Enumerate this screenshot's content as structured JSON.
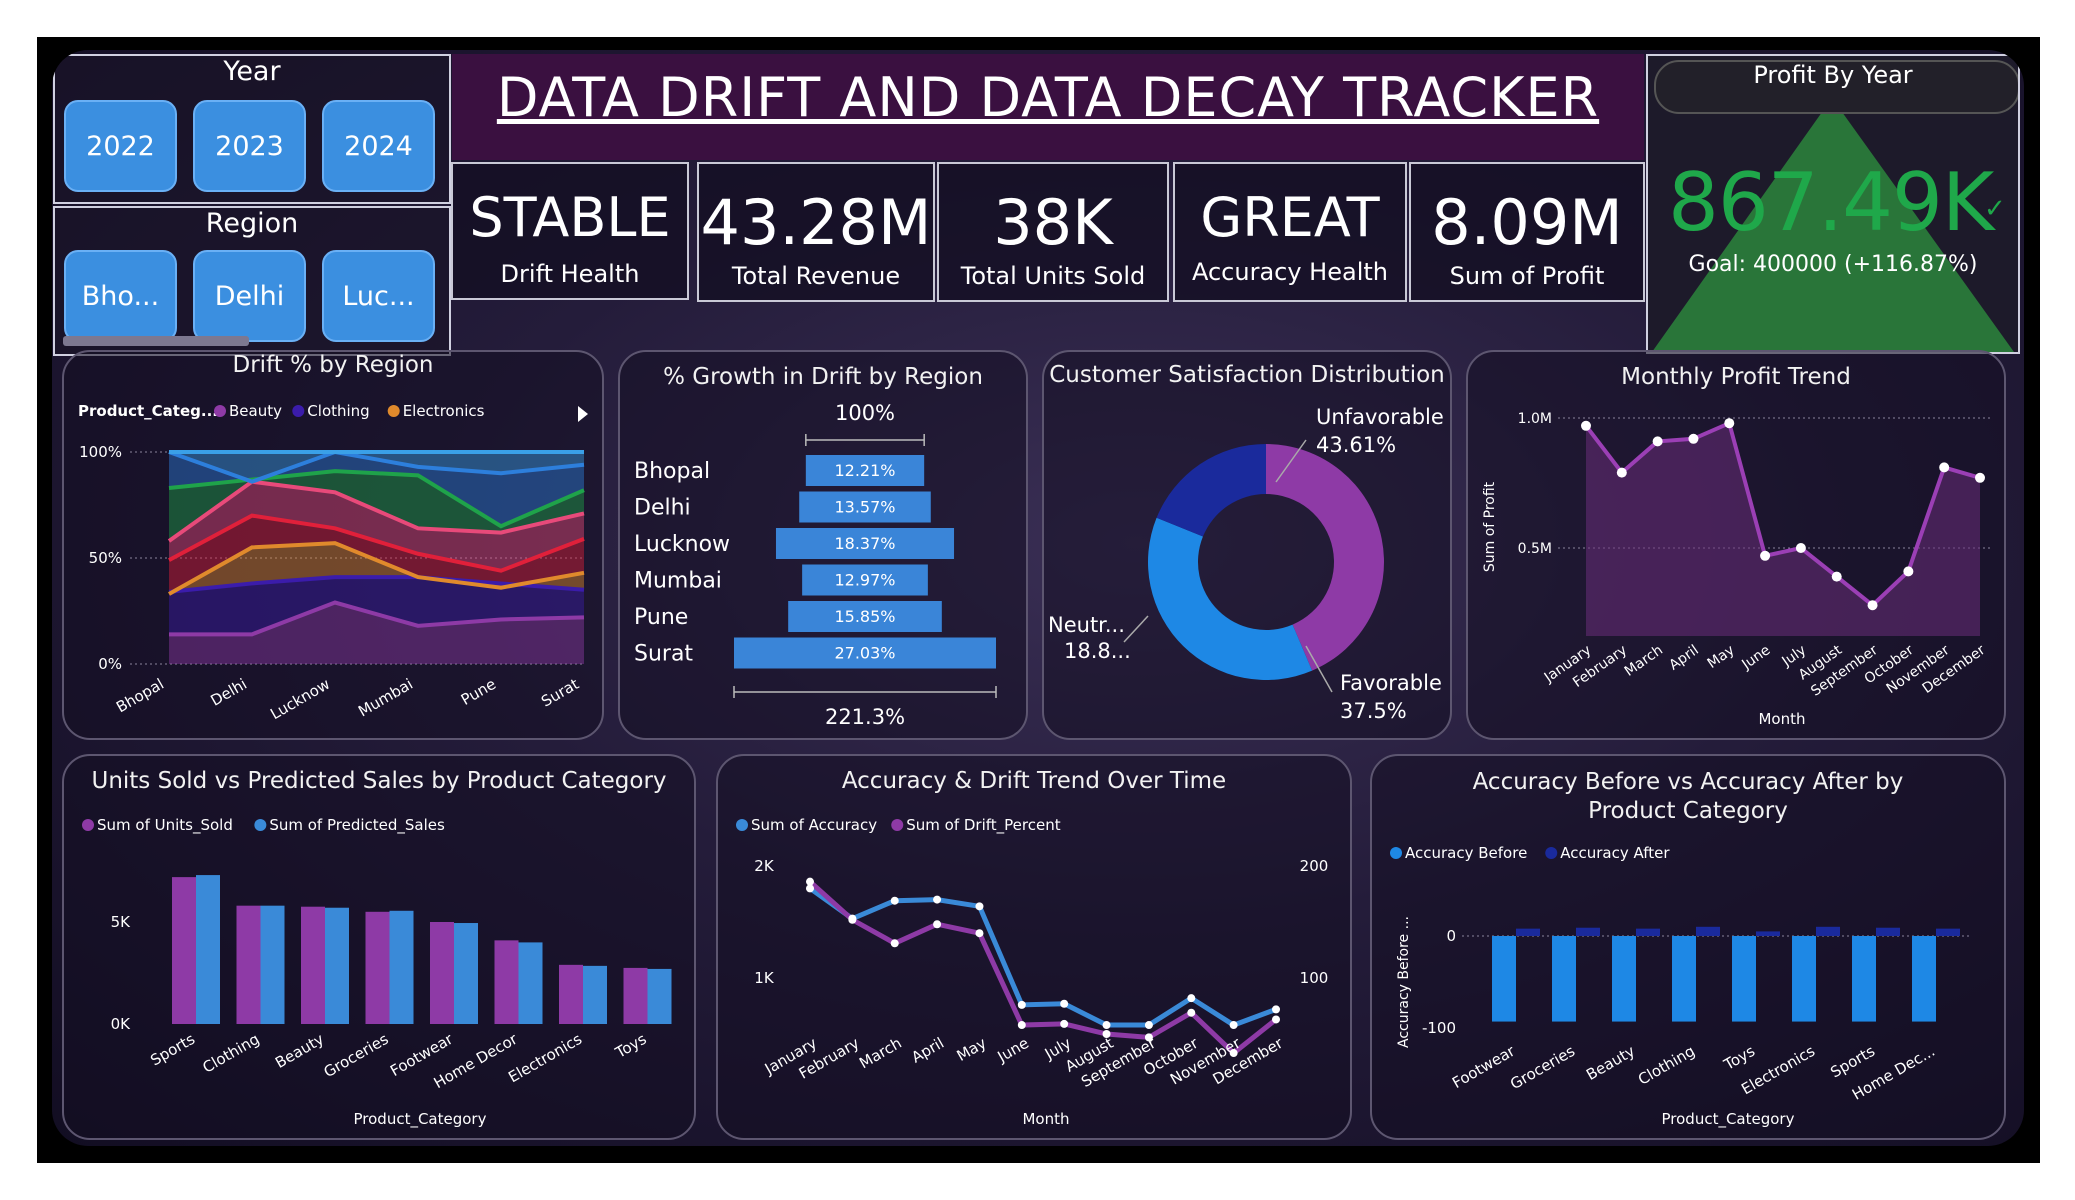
{
  "title": "DATA DRIFT AND DATA DECAY TRACKER",
  "year_slicer": {
    "label": "Year",
    "options": [
      "2022",
      "2023",
      "2024"
    ]
  },
  "region_slicer": {
    "label": "Region",
    "options": [
      "Bho...",
      "Delhi",
      "Luc..."
    ]
  },
  "kpis": [
    {
      "value": "STABLE",
      "label": "Drift Health"
    },
    {
      "value": "43.28M",
      "label": "Total Revenue"
    },
    {
      "value": "38K",
      "label": "Total Units Sold"
    },
    {
      "value": "GREAT",
      "label": "Accuracy Health"
    },
    {
      "value": "8.09M",
      "label": "Sum of Profit"
    }
  ],
  "profit_by_year": {
    "title": "Profit By Year",
    "value": "867.49K",
    "check": "✓",
    "goal": "Goal: 400000 (+116.87%)"
  },
  "colors": {
    "accent_blue": "#1e88e5",
    "purple": "#8e3aa6",
    "navy": "#1a2a9c",
    "green": "#1b9e3a"
  },
  "drift_by_region": {
    "title": "Drift % by Region",
    "legend_title": "Product_Categ...",
    "legend": [
      {
        "name": "Beauty",
        "color": "#8e3aa6"
      },
      {
        "name": "Clothing",
        "color": "#3b1cab"
      },
      {
        "name": "Electronics",
        "color": "#e08a2c"
      }
    ],
    "y_ticks": [
      "100%",
      "50%",
      "0%"
    ],
    "categories": [
      "Bhopal",
      "Delhi",
      "Lucknow",
      "Mumbai",
      "Pune",
      "Surat"
    ],
    "stack_tops": [
      {
        "color": "#8e3aa6",
        "values": [
          14,
          14,
          29,
          18,
          21,
          22
        ]
      },
      {
        "color": "#3b1cab",
        "values": [
          34,
          38,
          41,
          41,
          38,
          35
        ]
      },
      {
        "color": "#e08a2c",
        "values": [
          33,
          55,
          57,
          41,
          36,
          43
        ]
      },
      {
        "color": "#e0203a",
        "values": [
          49,
          70,
          64,
          52,
          44,
          59
        ]
      },
      {
        "color": "#e84a7a",
        "values": [
          58,
          86,
          81,
          64,
          62,
          71
        ]
      },
      {
        "color": "#1fa34a",
        "values": [
          83,
          87,
          91,
          89,
          65,
          82
        ]
      },
      {
        "color": "#2d7fdc",
        "values": [
          100,
          86,
          100,
          93,
          90,
          94
        ]
      },
      {
        "color": "#3aa0e8",
        "values": [
          100,
          100,
          100,
          100,
          100,
          100
        ]
      }
    ]
  },
  "growth_by_region": {
    "title": "% Growth in Drift by Region",
    "top_label": "100%",
    "bottom_label": "221.3%",
    "rows": [
      {
        "label": "Bhopal",
        "value": "12.21%",
        "num": 12.21
      },
      {
        "label": "Delhi",
        "value": "13.57%",
        "num": 13.57
      },
      {
        "label": "Lucknow",
        "value": "18.37%",
        "num": 18.37
      },
      {
        "label": "Mumbai",
        "value": "12.97%",
        "num": 12.97
      },
      {
        "label": "Pune",
        "value": "15.85%",
        "num": 15.85
      },
      {
        "label": "Surat",
        "value": "27.03%",
        "num": 27.03
      }
    ]
  },
  "satisfaction": {
    "title": "Customer Satisfaction Distribution",
    "slices": [
      {
        "name": "Unfavorable",
        "label": "Unfavorable",
        "pct_label": "43.61%",
        "value": 43.61,
        "color": "#8e3aa6"
      },
      {
        "name": "Favorable",
        "label": "Favorable",
        "pct_label": "37.5%",
        "value": 37.5,
        "color": "#1e88e5"
      },
      {
        "name": "Neutral",
        "label": "Neutr...",
        "pct_label": "18.8...",
        "value": 18.89,
        "color": "#1a2a9c"
      }
    ]
  },
  "monthly_profit": {
    "title": "Monthly Profit Trend",
    "ylabel": "Sum of Profit",
    "xlabel": "Month",
    "y_ticks": [
      {
        "label": "1.0M",
        "value": 1.0
      },
      {
        "label": "0.5M",
        "value": 0.5
      }
    ],
    "months": [
      "January",
      "February",
      "March",
      "April",
      "May",
      "June",
      "July",
      "August",
      "September",
      "October",
      "November",
      "December"
    ],
    "values": [
      0.97,
      0.79,
      0.91,
      0.92,
      0.98,
      0.47,
      0.5,
      0.39,
      0.28,
      0.41,
      0.81,
      0.77
    ]
  },
  "units_vs_predicted": {
    "title": "Units Sold vs Predicted Sales by Product Category",
    "legend": [
      {
        "name": "Sum of Units_Sold",
        "color": "#8e3aa6"
      },
      {
        "name": "Sum of Predicted_Sales",
        "color": "#3a8ad8"
      }
    ],
    "y_ticks": [
      {
        "label": "5K",
        "value": 5000
      },
      {
        "label": "0K",
        "value": 0
      }
    ],
    "xlabel": "Product_Category",
    "categories": [
      "Sports",
      "Clothing",
      "Beauty",
      "Groceries",
      "Footwear",
      "Home Decor",
      "Electronics",
      "Toys"
    ],
    "units": [
      7200,
      5800,
      5750,
      5500,
      5000,
      4100,
      2900,
      2750
    ],
    "predicted": [
      7300,
      5800,
      5700,
      5550,
      4950,
      4000,
      2850,
      2700
    ]
  },
  "accuracy_drift": {
    "title": "Accuracy & Drift Trend Over Time",
    "legend": [
      {
        "name": "Sum of Accuracy",
        "color": "#3a8ad8"
      },
      {
        "name": "Sum of Drift_Percent",
        "color": "#8e3aa6"
      }
    ],
    "y_left_ticks": [
      {
        "label": "2K",
        "value": 2000
      },
      {
        "label": "1K",
        "value": 1000
      }
    ],
    "y_right_ticks": [
      {
        "label": "200",
        "value": 200
      },
      {
        "label": "100",
        "value": 100
      }
    ],
    "xlabel": "Month",
    "months": [
      "January",
      "February",
      "March",
      "April",
      "May",
      "June",
      "July",
      "August",
      "September",
      "October",
      "November",
      "December"
    ],
    "accuracy": [
      1800,
      1530,
      1690,
      1700,
      1640,
      760,
      770,
      580,
      580,
      820,
      580,
      720
    ],
    "drift": [
      186,
      152,
      131,
      148,
      140,
      58,
      59,
      50,
      47,
      69,
      33,
      63
    ]
  },
  "accuracy_before_after": {
    "title": "Accuracy Before vs Accuracy After by Product Category",
    "legend": [
      {
        "name": "Accuracy Before",
        "color": "#1e88e5"
      },
      {
        "name": "Accuracy After",
        "color": "#1a2a9c"
      }
    ],
    "ylabel": "Accuracy Before ...",
    "xlabel": "Product_Category",
    "y_ticks": [
      {
        "label": "0",
        "value": 0
      },
      {
        "label": "-100",
        "value": -100
      }
    ],
    "categories": [
      "Footwear",
      "Groceries",
      "Beauty",
      "Clothing",
      "Toys",
      "Electronics",
      "Sports",
      "Home Dec..."
    ],
    "before": [
      -93,
      -93,
      -93,
      -93,
      -93,
      -93,
      -93,
      -93
    ],
    "after": [
      8,
      9,
      8,
      10,
      5,
      10,
      9,
      8
    ]
  }
}
